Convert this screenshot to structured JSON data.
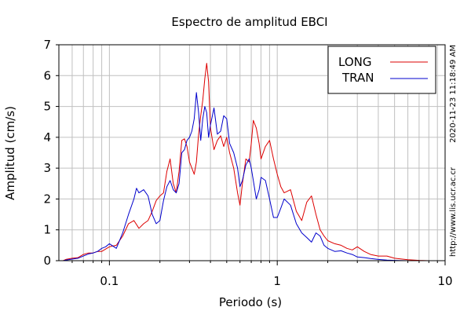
{
  "chart_data": {
    "type": "line",
    "title": "Espectro de amplitud EBCI",
    "xlabel": "Periodo (s)",
    "ylabel": "Amplitud (cm/s)",
    "x_scale": "log",
    "xlim": [
      0.05,
      10
    ],
    "ylim": [
      0,
      7
    ],
    "x_tick_labels": [
      {
        "value": 0.1,
        "label": "0.1"
      },
      {
        "value": 1,
        "label": "1"
      },
      {
        "value": 10,
        "label": "10"
      }
    ],
    "y_tick_labels": [
      "0",
      "1",
      "2",
      "3",
      "4",
      "5",
      "6",
      "7"
    ],
    "y_ticks": [
      0,
      1,
      2,
      3,
      4,
      5,
      6,
      7
    ],
    "grid": true,
    "legend_position": "top-right",
    "side_texts": [
      "2020-11-23 11:18:49 AM",
      "http://www.lis.ucr.ac.cr"
    ],
    "series": [
      {
        "name": "LONG",
        "color": "#dd0000",
        "x": [
          0.053,
          0.055,
          0.06,
          0.065,
          0.07,
          0.075,
          0.08,
          0.085,
          0.09,
          0.1,
          0.11,
          0.12,
          0.13,
          0.14,
          0.15,
          0.16,
          0.17,
          0.18,
          0.19,
          0.2,
          0.21,
          0.22,
          0.23,
          0.24,
          0.25,
          0.26,
          0.27,
          0.28,
          0.29,
          0.3,
          0.31,
          0.32,
          0.33,
          0.34,
          0.35,
          0.36,
          0.37,
          0.38,
          0.39,
          0.4,
          0.42,
          0.44,
          0.46,
          0.48,
          0.5,
          0.52,
          0.55,
          0.58,
          0.6,
          0.62,
          0.65,
          0.68,
          0.7,
          0.72,
          0.75,
          0.78,
          0.8,
          0.85,
          0.9,
          0.95,
          1.0,
          1.05,
          1.1,
          1.2,
          1.3,
          1.4,
          1.5,
          1.6,
          1.7,
          1.8,
          1.9,
          2.0,
          2.2,
          2.4,
          2.6,
          2.8,
          3.0,
          3.3,
          3.6,
          4.0,
          4.5,
          5.0,
          6.0,
          7.0,
          8.0,
          10.0
        ],
        "y": [
          0.0,
          0.04,
          0.08,
          0.1,
          0.2,
          0.25,
          0.25,
          0.3,
          0.3,
          0.45,
          0.5,
          0.8,
          1.2,
          1.3,
          1.05,
          1.2,
          1.3,
          1.6,
          1.95,
          2.1,
          2.2,
          2.9,
          3.3,
          2.5,
          2.2,
          2.9,
          3.9,
          3.95,
          3.7,
          3.2,
          3.0,
          2.8,
          3.2,
          4.1,
          4.7,
          5.2,
          5.9,
          6.4,
          5.8,
          4.3,
          3.6,
          3.9,
          4.05,
          3.7,
          4.0,
          3.5,
          3.0,
          2.2,
          1.8,
          2.5,
          3.3,
          3.2,
          3.8,
          4.55,
          4.3,
          3.8,
          3.3,
          3.7,
          3.9,
          3.3,
          2.8,
          2.4,
          2.2,
          2.3,
          1.6,
          1.3,
          1.9,
          2.1,
          1.5,
          1.0,
          0.8,
          0.65,
          0.55,
          0.5,
          0.4,
          0.35,
          0.45,
          0.3,
          0.2,
          0.15,
          0.15,
          0.08,
          0.03,
          0.01,
          0.0,
          0.0
        ]
      },
      {
        "name": "TRAN",
        "color": "#0000cc",
        "x": [
          0.053,
          0.055,
          0.06,
          0.065,
          0.07,
          0.075,
          0.08,
          0.085,
          0.09,
          0.095,
          0.1,
          0.11,
          0.12,
          0.13,
          0.14,
          0.145,
          0.15,
          0.16,
          0.17,
          0.18,
          0.19,
          0.2,
          0.21,
          0.22,
          0.23,
          0.24,
          0.25,
          0.26,
          0.27,
          0.28,
          0.29,
          0.3,
          0.31,
          0.32,
          0.33,
          0.34,
          0.35,
          0.36,
          0.37,
          0.38,
          0.39,
          0.4,
          0.42,
          0.44,
          0.46,
          0.48,
          0.5,
          0.52,
          0.55,
          0.58,
          0.6,
          0.62,
          0.65,
          0.68,
          0.7,
          0.72,
          0.75,
          0.78,
          0.8,
          0.85,
          0.9,
          0.95,
          1.0,
          1.05,
          1.1,
          1.2,
          1.3,
          1.4,
          1.5,
          1.6,
          1.7,
          1.8,
          1.9,
          2.0,
          2.2,
          2.4,
          2.6,
          2.8,
          3.0,
          3.3,
          3.6,
          4.0,
          4.5,
          5.0,
          6.0,
          7.0,
          8.0,
          10.0
        ],
        "y": [
          0.0,
          0.02,
          0.05,
          0.08,
          0.15,
          0.22,
          0.25,
          0.3,
          0.4,
          0.45,
          0.55,
          0.4,
          0.9,
          1.5,
          2.0,
          2.35,
          2.2,
          2.3,
          2.1,
          1.5,
          1.2,
          1.3,
          1.95,
          2.4,
          2.6,
          2.3,
          2.2,
          2.5,
          3.5,
          3.6,
          3.9,
          4.0,
          4.2,
          4.6,
          5.45,
          4.8,
          3.9,
          4.6,
          5.0,
          4.8,
          4.0,
          4.4,
          4.95,
          4.1,
          4.2,
          4.7,
          4.6,
          3.8,
          3.5,
          3.0,
          2.4,
          2.6,
          3.1,
          3.3,
          3.0,
          2.6,
          2.0,
          2.3,
          2.7,
          2.6,
          2.0,
          1.4,
          1.4,
          1.7,
          2.0,
          1.8,
          1.2,
          0.9,
          0.75,
          0.6,
          0.9,
          0.8,
          0.5,
          0.4,
          0.3,
          0.32,
          0.25,
          0.2,
          0.12,
          0.1,
          0.07,
          0.04,
          0.02,
          0.01,
          0.0,
          0.0,
          0.0,
          0.0
        ]
      }
    ]
  }
}
